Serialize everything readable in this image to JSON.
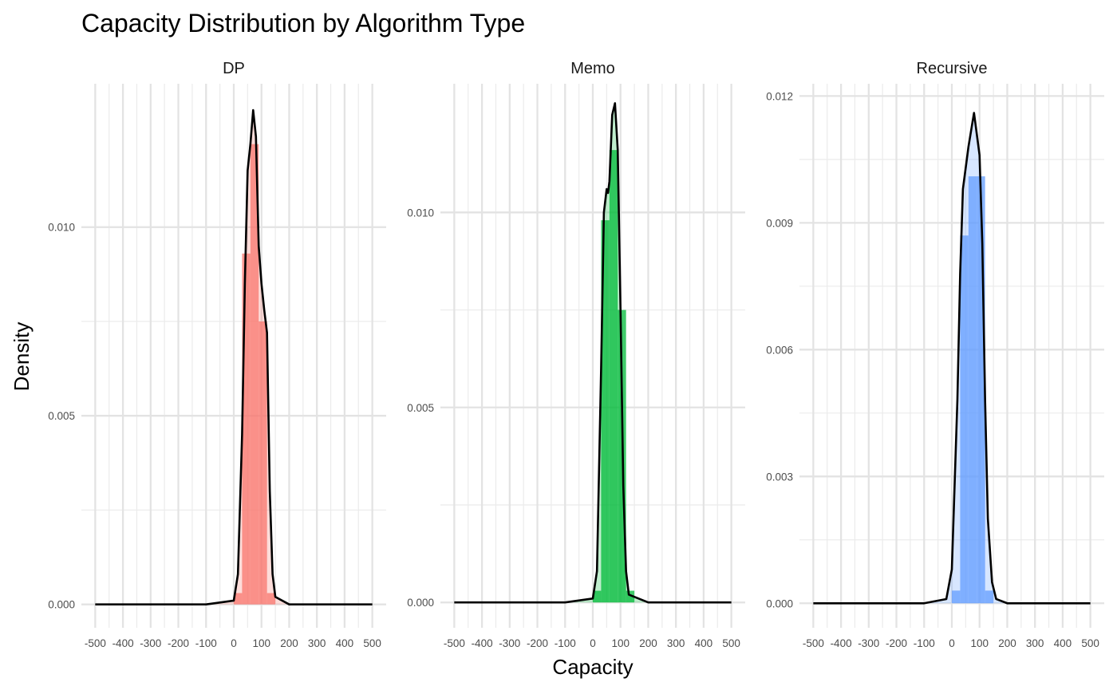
{
  "chart_data": {
    "type": "histogram+density",
    "title": "Capacity Distribution by Algorithm Type",
    "xlabel": "Capacity",
    "ylabel": "Density",
    "xlim": [
      -500,
      500
    ],
    "x_ticks": [
      -500,
      -400,
      -300,
      -200,
      -100,
      0,
      100,
      200,
      300,
      400,
      500
    ],
    "x_tick_labels": [
      "-500",
      "-400",
      "-300",
      "-200",
      "-100",
      "0",
      "100",
      "200",
      "300",
      "400",
      "500"
    ],
    "grid": true,
    "facets": [
      {
        "name": "DP",
        "color": "#F8766D",
        "ylim": [
          -0.00062,
          0.0138
        ],
        "y_ticks": [
          0,
          0.005,
          0.01
        ],
        "y_tick_labels": [
          "0.000",
          "0.005",
          "0.010"
        ],
        "bins": [
          {
            "x0": 0,
            "x1": 30,
            "value": 0.0003
          },
          {
            "x0": 30,
            "x1": 60,
            "value": 0.0093
          },
          {
            "x0": 60,
            "x1": 90,
            "value": 0.0122
          },
          {
            "x0": 90,
            "x1": 120,
            "value": 0.0075
          },
          {
            "x0": 120,
            "x1": 150,
            "value": 0.0003
          }
        ],
        "density": [
          [
            -500,
            0
          ],
          [
            -100,
            0
          ],
          [
            0,
            0.0001
          ],
          [
            15,
            0.0008
          ],
          [
            30,
            0.0045
          ],
          [
            40,
            0.0085
          ],
          [
            50,
            0.0115
          ],
          [
            60,
            0.0122
          ],
          [
            70,
            0.0131
          ],
          [
            80,
            0.0124
          ],
          [
            90,
            0.0095
          ],
          [
            100,
            0.0085
          ],
          [
            110,
            0.0078
          ],
          [
            120,
            0.0072
          ],
          [
            130,
            0.003
          ],
          [
            140,
            0.0008
          ],
          [
            150,
            0.0002
          ],
          [
            200,
            0
          ],
          [
            500,
            0
          ]
        ]
      },
      {
        "name": "Memo",
        "color": "#00BA38",
        "ylim": [
          -0.00065,
          0.0133
        ],
        "y_ticks": [
          0,
          0.005,
          0.01
        ],
        "y_tick_labels": [
          "0.000",
          "0.005",
          "0.010"
        ],
        "bins": [
          {
            "x0": 0,
            "x1": 30,
            "value": 0.0003
          },
          {
            "x0": 30,
            "x1": 60,
            "value": 0.0098
          },
          {
            "x0": 60,
            "x1": 90,
            "value": 0.0116
          },
          {
            "x0": 90,
            "x1": 120,
            "value": 0.0075
          },
          {
            "x0": 120,
            "x1": 150,
            "value": 0.0003
          }
        ],
        "density": [
          [
            -500,
            0
          ],
          [
            -100,
            0
          ],
          [
            0,
            0.0001
          ],
          [
            15,
            0.0008
          ],
          [
            30,
            0.006
          ],
          [
            40,
            0.01
          ],
          [
            50,
            0.0106
          ],
          [
            55,
            0.0105
          ],
          [
            60,
            0.0108
          ],
          [
            70,
            0.0125
          ],
          [
            80,
            0.0128
          ],
          [
            90,
            0.0116
          ],
          [
            100,
            0.0075
          ],
          [
            110,
            0.003
          ],
          [
            120,
            0.0008
          ],
          [
            130,
            0.0002
          ],
          [
            200,
            0
          ],
          [
            500,
            0
          ]
        ]
      },
      {
        "name": "Recursive",
        "color": "#619CFF",
        "ylim": [
          -0.00058,
          0.01229
        ],
        "y_ticks": [
          0,
          0.003,
          0.006,
          0.009,
          0.012
        ],
        "y_tick_labels": [
          "0.000",
          "0.003",
          "0.006",
          "0.009",
          "0.012"
        ],
        "bins": [
          {
            "x0": 0,
            "x1": 30,
            "value": 0.0003
          },
          {
            "x0": 30,
            "x1": 60,
            "value": 0.0087
          },
          {
            "x0": 60,
            "x1": 90,
            "value": 0.0101
          },
          {
            "x0": 90,
            "x1": 120,
            "value": 0.0101
          },
          {
            "x0": 120,
            "x1": 150,
            "value": 0.0003
          }
        ],
        "density": [
          [
            -500,
            0
          ],
          [
            -100,
            0
          ],
          [
            -20,
            0.0001
          ],
          [
            0,
            0.0008
          ],
          [
            20,
            0.0048
          ],
          [
            30,
            0.0078
          ],
          [
            40,
            0.0098
          ],
          [
            60,
            0.0108
          ],
          [
            80,
            0.0116
          ],
          [
            100,
            0.0106
          ],
          [
            110,
            0.0085
          ],
          [
            120,
            0.0048
          ],
          [
            130,
            0.002
          ],
          [
            145,
            0.0005
          ],
          [
            160,
            0.0001
          ],
          [
            200,
            0
          ],
          [
            500,
            0
          ]
        ]
      }
    ]
  }
}
